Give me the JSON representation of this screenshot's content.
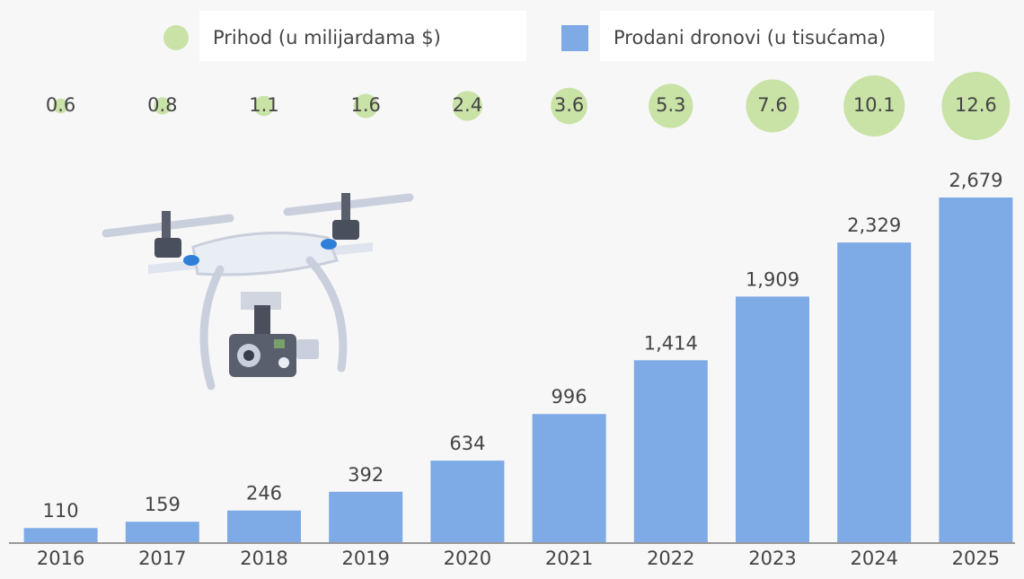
{
  "chart_data": {
    "type": "bar",
    "categories": [
      "2016",
      "2017",
      "2018",
      "2019",
      "2020",
      "2021",
      "2022",
      "2023",
      "2024",
      "2025"
    ],
    "series": [
      {
        "name": "Prihod (u milijardama $)",
        "type": "bubble",
        "color": "#c9e2a6",
        "values": [
          0.6,
          0.8,
          1.1,
          1.6,
          2.4,
          3.6,
          5.3,
          7.6,
          10.1,
          12.6
        ]
      },
      {
        "name": "Prodani dronovi (u tisućama)",
        "color": "#7eaae6",
        "values": [
          110,
          159,
          246,
          392,
          634,
          996,
          1414,
          1909,
          2329,
          2679
        ],
        "value_labels": [
          "110",
          "159",
          "246",
          "392",
          "634",
          "996",
          "1,414",
          "1,909",
          "2,329",
          "2,679"
        ]
      }
    ]
  }
}
